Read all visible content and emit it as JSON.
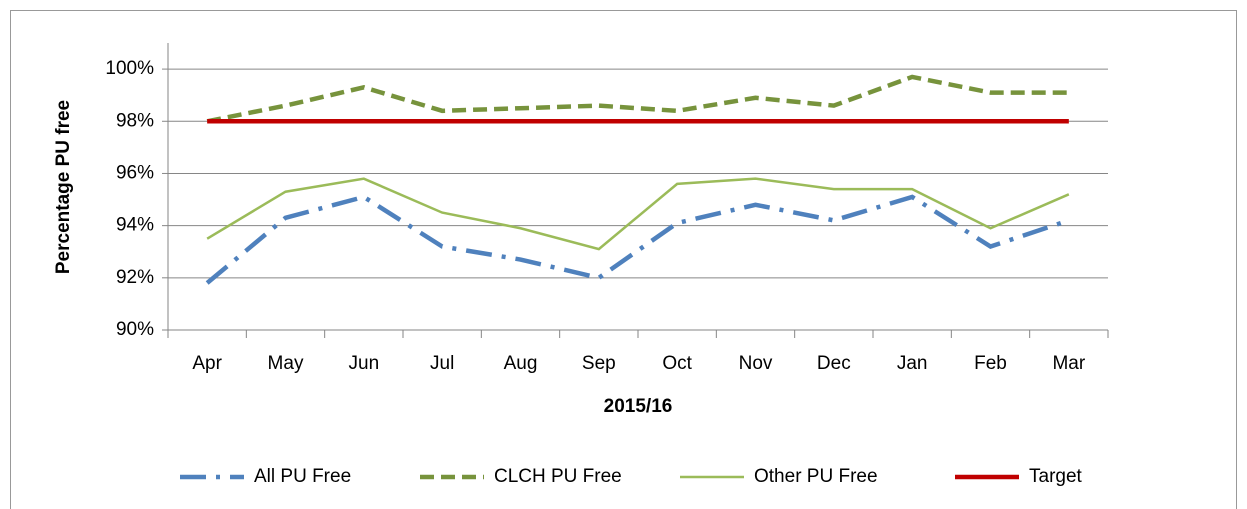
{
  "chart_data": {
    "type": "line",
    "x_label": "2015/16",
    "y_label": "Percentage PU free",
    "categories": [
      "Apr",
      "May",
      "Jun",
      "Jul",
      "Aug",
      "Sep",
      "Oct",
      "Nov",
      "Dec",
      "Jan",
      "Feb",
      "Mar"
    ],
    "series": [
      {
        "name": "All PU Free",
        "color": "#4f81bd",
        "dash": "dash-dot",
        "values": [
          91.8,
          94.3,
          95.1,
          93.2,
          92.7,
          92.0,
          94.1,
          94.8,
          94.2,
          95.1,
          93.2,
          94.2
        ]
      },
      {
        "name": "CLCH PU Free",
        "color": "#77933c",
        "dash": "dash",
        "values": [
          98.0,
          98.6,
          99.3,
          98.4,
          98.5,
          98.6,
          98.4,
          98.9,
          98.6,
          99.7,
          99.1,
          99.1
        ]
      },
      {
        "name": "Other PU Free",
        "color": "#9bbb59",
        "dash": "solid",
        "values": [
          93.5,
          95.3,
          95.8,
          94.5,
          93.9,
          93.1,
          95.6,
          95.8,
          95.4,
          95.4,
          93.9,
          95.2
        ]
      },
      {
        "name": "Target",
        "color": "#c00000",
        "dash": "solid",
        "values": [
          98,
          98,
          98,
          98,
          98,
          98,
          98,
          98,
          98,
          98,
          98,
          98
        ]
      }
    ],
    "ylim": [
      90,
      101
    ],
    "yticks": [
      {
        "value": 90,
        "label": "90%"
      },
      {
        "value": 92,
        "label": "92%"
      },
      {
        "value": 94,
        "label": "94%"
      },
      {
        "value": 96,
        "label": "96%"
      },
      {
        "value": 98,
        "label": "98%"
      },
      {
        "value": 100,
        "label": "100%"
      }
    ],
    "grid": true,
    "legend": "bottom"
  }
}
